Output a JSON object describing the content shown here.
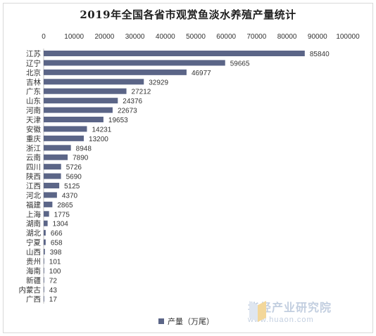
{
  "chart_data": {
    "type": "bar",
    "orientation": "horizontal",
    "title": "2019年全国各省市观赏鱼淡水养殖产量统计",
    "categories": [
      "江苏",
      "辽宁",
      "北京",
      "吉林",
      "广东",
      "山东",
      "河南",
      "天津",
      "安徽",
      "重庆",
      "浙江",
      "云南",
      "四川",
      "陕西",
      "江西",
      "河北",
      "福建",
      "上海",
      "湖南",
      "湖北",
      "宁夏",
      "山西",
      "贵州",
      "海南",
      "新疆",
      "内蒙古",
      "广西"
    ],
    "series": [
      {
        "name": "产量（万尾）",
        "values": [
          85840,
          59665,
          46977,
          32929,
          27212,
          24376,
          22673,
          19653,
          14231,
          13200,
          8948,
          7890,
          5726,
          5690,
          5125,
          4370,
          2865,
          1775,
          1304,
          666,
          658,
          398,
          101,
          100,
          72,
          43,
          17
        ]
      }
    ],
    "xlim": [
      0,
      100000
    ],
    "x_ticks": [
      "0",
      "10000",
      "20000",
      "30000",
      "40000",
      "50000",
      "60000",
      "70000",
      "80000",
      "90000",
      "100000"
    ],
    "x_axis_position": "top",
    "grid": false,
    "legend_position": "bottom",
    "bar_color": "#5b6587"
  },
  "watermark": {
    "name": "华经产业研究院",
    "url": "www.huaon.com"
  }
}
